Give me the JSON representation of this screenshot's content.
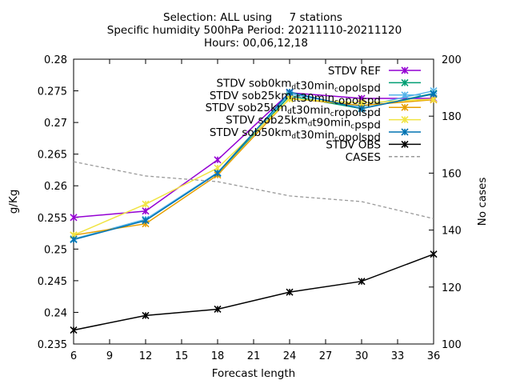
{
  "chart_data": {
    "type": "line",
    "title": [
      "Selection: ALL using     7 stations",
      "Specific humidity 500hPa   Period: 20211110-20211120",
      "Hours: 00,06,12,18"
    ],
    "xlabel": "Forecast length",
    "ylabel": "g/Kg",
    "y2label": "No cases",
    "xlim": [
      6,
      36
    ],
    "ylim": [
      0.235,
      0.28
    ],
    "y2lim": [
      100,
      200
    ],
    "xticks": [
      "6",
      "9",
      "12",
      "15",
      "18",
      "21",
      "24",
      "27",
      "30",
      "33",
      "36"
    ],
    "yticks": [
      "0.235",
      "0.24",
      "0.245",
      "0.25",
      "0.255",
      "0.26",
      "0.265",
      "0.27",
      "0.275",
      "0.28"
    ],
    "y2ticks": [
      "100",
      "120",
      "140",
      "160",
      "180",
      "200"
    ],
    "grid": false,
    "legend_position": "top-right",
    "x": [
      6,
      12,
      18,
      24,
      30,
      36
    ],
    "series": [
      {
        "name": "STDV REF",
        "color": "#9400d3",
        "marker": "x",
        "axis": "y",
        "values": [
          0.255,
          0.256,
          0.2641,
          0.2747,
          0.2738,
          0.2738
        ]
      },
      {
        "name": "STDV sob0km_dt30min_copolspd",
        "color": "#009e73",
        "marker": "x",
        "axis": "y",
        "values": [
          0.2516,
          0.2546,
          0.262,
          0.2742,
          0.2722,
          0.2746
        ]
      },
      {
        "name": "STDV sob25km_dt30min_copolspd",
        "color": "#56b4e9",
        "marker": "x",
        "axis": "y",
        "values": [
          0.2516,
          0.2547,
          0.2621,
          0.2745,
          0.2725,
          0.275
        ]
      },
      {
        "name": "STDV sob25km_dt30min_cropolspd",
        "color": "#e69f00",
        "marker": "x",
        "axis": "y",
        "values": [
          0.2522,
          0.254,
          0.2617,
          0.2738,
          0.2727,
          0.2736
        ]
      },
      {
        "name": "STDV sob25km_dt90min_cpspd",
        "color": "#f0e442",
        "marker": "x",
        "axis": "y",
        "values": [
          0.2522,
          0.2571,
          0.2628,
          0.2737,
          0.2731,
          0.2737
        ]
      },
      {
        "name": "STDV sob50km_dt30min_copolspd",
        "color": "#0072b2",
        "marker": "x",
        "axis": "y",
        "values": [
          0.2515,
          0.2545,
          0.262,
          0.2748,
          0.2722,
          0.2745
        ]
      },
      {
        "name": "STDV OBS",
        "color": "#000000",
        "marker": "x",
        "axis": "y",
        "values": [
          0.2372,
          0.2395,
          0.2405,
          0.2432,
          0.2449,
          0.2492
        ]
      },
      {
        "name": "CASES",
        "color": "#999999",
        "marker": "none",
        "dash": true,
        "axis": "y2",
        "values": [
          164,
          159,
          157,
          152,
          150,
          144
        ]
      }
    ],
    "legend": [
      {
        "text": "STDV REF",
        "sub": null
      },
      {
        "text": "STDV sob0km",
        "sub": "d",
        "rest": "t30min",
        "sub2": "c",
        "tail": "opolspd"
      },
      {
        "text": "STDV sob25km",
        "sub": "d",
        "rest": "t30min",
        "sub2": "c",
        "tail": "opolspd"
      },
      {
        "text": "STDV sob25km",
        "sub": "d",
        "rest": "t30min",
        "sub2": "c",
        "tail": "ropolspd"
      },
      {
        "text": "STDV sob25km",
        "sub": "d",
        "rest": "t90min",
        "sub2": "c",
        "tail": "pspd"
      },
      {
        "text": "STDV sob50km",
        "sub": "d",
        "rest": "t30min",
        "sub2": "c",
        "tail": "opolspd"
      },
      {
        "text": "STDV OBS",
        "sub": null
      },
      {
        "text": "CASES",
        "sub": null
      }
    ]
  }
}
